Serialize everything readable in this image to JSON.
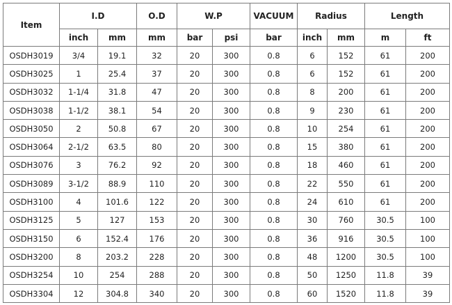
{
  "header": {
    "item": "Item",
    "groups": [
      "I.D",
      "O.D",
      "W.P",
      "VACUUM",
      "Radius",
      "Length"
    ],
    "units": [
      "inch",
      "mm",
      "mm",
      "bar",
      "psi",
      "bar",
      "inch",
      "mm",
      "m",
      "ft"
    ]
  },
  "rows": [
    [
      "OSDH3019",
      "3/4",
      "19.1",
      "32",
      "20",
      "300",
      "0.8",
      "6",
      "152",
      "61",
      "200"
    ],
    [
      "OSDH3025",
      "1",
      "25.4",
      "37",
      "20",
      "300",
      "0.8",
      "6",
      "152",
      "61",
      "200"
    ],
    [
      "OSDH3032",
      "1-1/4",
      "31.8",
      "47",
      "20",
      "300",
      "0.8",
      "8",
      "200",
      "61",
      "200"
    ],
    [
      "OSDH3038",
      "1-1/2",
      "38.1",
      "54",
      "20",
      "300",
      "0.8",
      "9",
      "230",
      "61",
      "200"
    ],
    [
      "OSDH3050",
      "2",
      "50.8",
      "67",
      "20",
      "300",
      "0.8",
      "10",
      "254",
      "61",
      "200"
    ],
    [
      "OSDH3064",
      "2-1/2",
      "63.5",
      "80",
      "20",
      "300",
      "0.8",
      "15",
      "380",
      "61",
      "200"
    ],
    [
      "OSDH3076",
      "3",
      "76.2",
      "92",
      "20",
      "300",
      "0.8",
      "18",
      "460",
      "61",
      "200"
    ],
    [
      "OSDH3089",
      "3-1/2",
      "88.9",
      "110",
      "20",
      "300",
      "0.8",
      "22",
      "550",
      "61",
      "200"
    ],
    [
      "OSDH3100",
      "4",
      "101.6",
      "122",
      "20",
      "300",
      "0.8",
      "24",
      "610",
      "61",
      "200"
    ],
    [
      "OSDH3125",
      "5",
      "127",
      "153",
      "20",
      "300",
      "0.8",
      "30",
      "760",
      "30.5",
      "100"
    ],
    [
      "OSDH3150",
      "6",
      "152.4",
      "176",
      "20",
      "300",
      "0.8",
      "36",
      "916",
      "30.5",
      "100"
    ],
    [
      "OSDH3200",
      "8",
      "203.2",
      "228",
      "20",
      "300",
      "0.8",
      "48",
      "1200",
      "30.5",
      "100"
    ],
    [
      "OSDH3254",
      "10",
      "254",
      "288",
      "20",
      "300",
      "0.8",
      "50",
      "1250",
      "11.8",
      "39"
    ],
    [
      "OSDH3304",
      "12",
      "304.8",
      "340",
      "20",
      "300",
      "0.8",
      "60",
      "1520",
      "11.8",
      "39"
    ]
  ]
}
